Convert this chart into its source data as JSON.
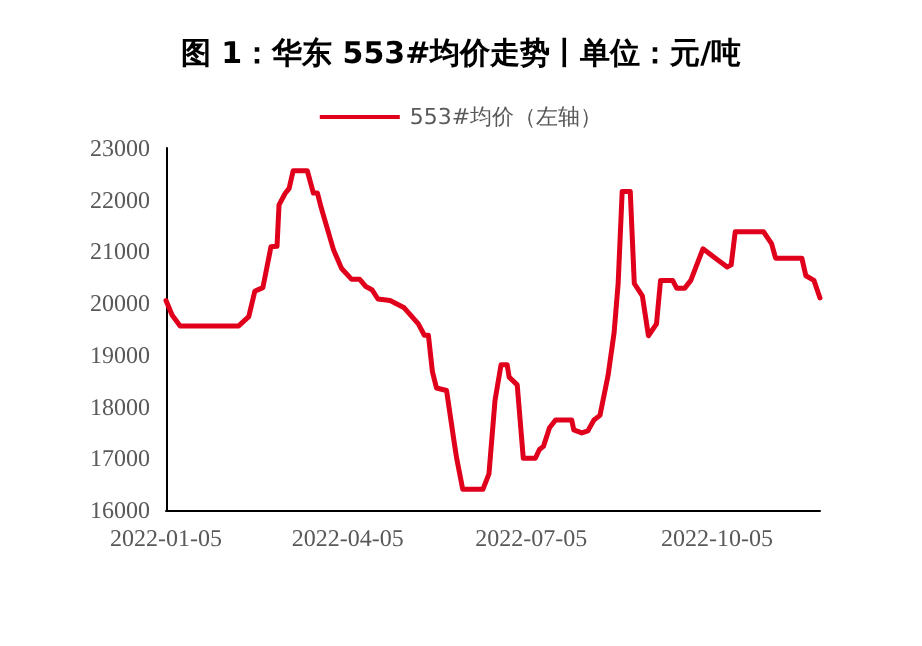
{
  "chart_data": {
    "type": "line",
    "title": "图 1：华东 553#均价走势丨单位：元/吨",
    "x": [
      "2022-01-05",
      "2022-01-08",
      "2022-01-12",
      "2022-02-10",
      "2022-02-15",
      "2022-02-18",
      "2022-02-22",
      "2022-02-26",
      "2022-03-01",
      "2022-03-02",
      "2022-03-05",
      "2022-03-07",
      "2022-03-09",
      "2022-03-16",
      "2022-03-19",
      "2022-03-21",
      "2022-03-23",
      "2022-03-29",
      "2022-04-02",
      "2022-04-07",
      "2022-04-11",
      "2022-04-14",
      "2022-04-17",
      "2022-04-20",
      "2022-04-26",
      "2022-05-03",
      "2022-05-10",
      "2022-05-13",
      "2022-05-15",
      "2022-05-17",
      "2022-05-19",
      "2022-05-24",
      "2022-05-28",
      "2022-05-29",
      "2022-06-01",
      "2022-06-11",
      "2022-06-14",
      "2022-06-17",
      "2022-06-20",
      "2022-06-23",
      "2022-06-24",
      "2022-06-28",
      "2022-07-01",
      "2022-07-07",
      "2022-07-09",
      "2022-07-11",
      "2022-07-14",
      "2022-07-17",
      "2022-07-25",
      "2022-07-26",
      "2022-07-30",
      "2022-08-02",
      "2022-08-05",
      "2022-08-08",
      "2022-08-12",
      "2022-08-15",
      "2022-08-17",
      "2022-08-19",
      "2022-08-23",
      "2022-08-25",
      "2022-08-29",
      "2022-09-01",
      "2022-09-05",
      "2022-09-07",
      "2022-09-13",
      "2022-09-15",
      "2022-09-19",
      "2022-09-22",
      "2022-09-28",
      "2022-10-10",
      "2022-10-12",
      "2022-10-14",
      "2022-10-28",
      "2022-11-01",
      "2022-11-03",
      "2022-11-16",
      "2022-11-18",
      "2022-11-22",
      "2022-11-25"
    ],
    "series": [
      {
        "name": "553#均价（左轴）",
        "color": "#e0001b",
        "values": [
          20050,
          19770,
          19560,
          19560,
          19740,
          20230,
          20300,
          21090,
          21100,
          21900,
          22120,
          22220,
          22560,
          22560,
          22130,
          22130,
          21830,
          21030,
          20670,
          20460,
          20460,
          20320,
          20260,
          20080,
          20050,
          19910,
          19600,
          19380,
          19380,
          18670,
          18360,
          18310,
          17250,
          17000,
          16400,
          16400,
          16700,
          18120,
          18810,
          18810,
          18570,
          18420,
          17000,
          17000,
          17170,
          17230,
          17590,
          17740,
          17740,
          17550,
          17490,
          17530,
          17740,
          17830,
          18600,
          19430,
          20380,
          22160,
          22160,
          20380,
          20140,
          19370,
          19600,
          20440,
          20440,
          20290,
          20290,
          20440,
          21050,
          20700,
          20740,
          21380,
          21380,
          21150,
          20870,
          20870,
          20530,
          20440,
          20100
        ]
      }
    ],
    "xlim": [
      "2022-01-05",
      "2022-11-25"
    ],
    "xticks": [
      "2022-01-05",
      "2022-04-05",
      "2022-07-05",
      "2022-10-05"
    ],
    "ylim": [
      16000,
      23000
    ],
    "yticks": [
      16000,
      17000,
      18000,
      19000,
      20000,
      21000,
      22000,
      23000
    ],
    "grid": false,
    "legend": "top",
    "marker": "none",
    "line_style": "solid"
  }
}
